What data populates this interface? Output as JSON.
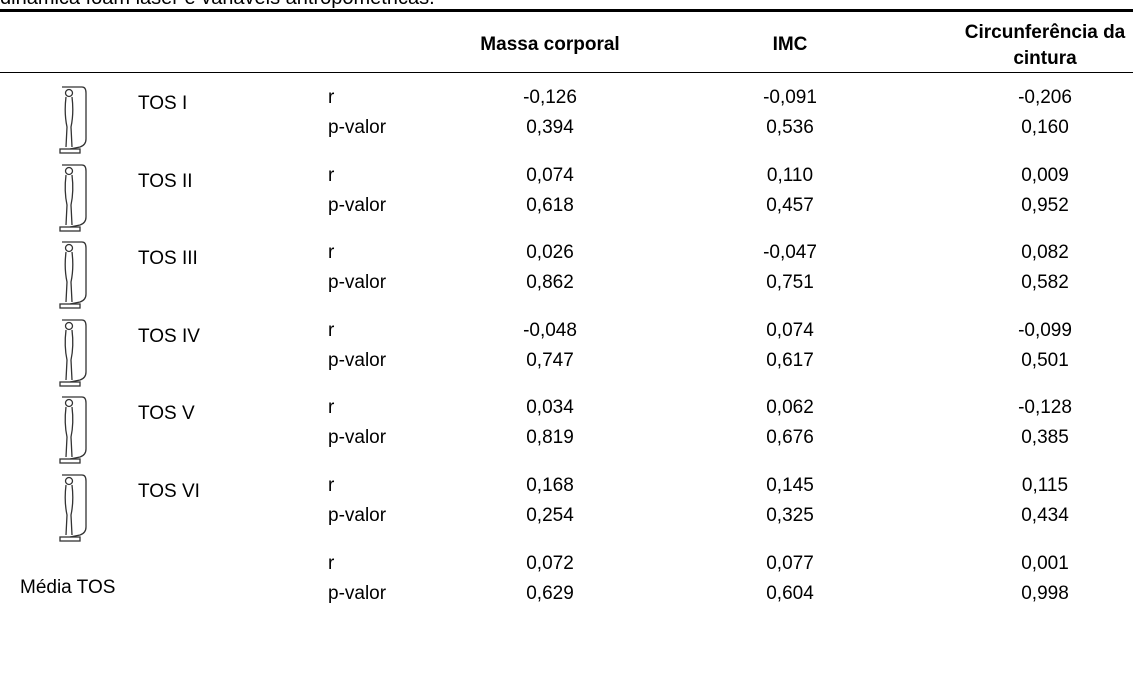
{
  "caption": "dinâmica foam laser e variáveis antropométricas.",
  "table": {
    "header": [
      "Massa corporal",
      "IMC",
      "Circunferência da cintura"
    ],
    "groups": [
      {
        "label": "TOS I",
        "rows": [
          [
            "r",
            "-0,126",
            "-0,091",
            "-0,206"
          ],
          [
            "p-valor",
            "0,394",
            "0,536",
            "0,160"
          ]
        ]
      },
      {
        "label": "TOS II",
        "rows": [
          [
            "r",
            "0,074",
            "0,110",
            "0,009"
          ],
          [
            "p-valor",
            "0,618",
            "0,457",
            "0,952"
          ]
        ]
      },
      {
        "label": "TOS III",
        "rows": [
          [
            "r",
            "0,026",
            "-0,047",
            "0,082"
          ],
          [
            "p-valor",
            "0,862",
            "0,751",
            "0,582"
          ]
        ]
      },
      {
        "label": "TOS IV",
        "rows": [
          [
            "r",
            "-0,048",
            "0,074",
            "-0,099"
          ],
          [
            "p-valor",
            "0,747",
            "0,617",
            "0,501"
          ]
        ]
      },
      {
        "label": "TOS V",
        "rows": [
          [
            "r",
            "0,034",
            "0,062",
            "-0,128"
          ],
          [
            "p-valor",
            "0,819",
            "0,676",
            "0,385"
          ]
        ]
      },
      {
        "label": "TOS VI",
        "rows": [
          [
            "r",
            "0,168",
            "0,145",
            "0,115"
          ],
          [
            "p-valor",
            "0,254",
            "0,325",
            "0,434"
          ]
        ]
      },
      {
        "label": "Média TOS",
        "rows": [
          [
            "r",
            "0,072",
            "0,077",
            "0,001"
          ],
          [
            "p-valor",
            "0,629",
            "0,604",
            "0,998"
          ]
        ]
      }
    ]
  }
}
